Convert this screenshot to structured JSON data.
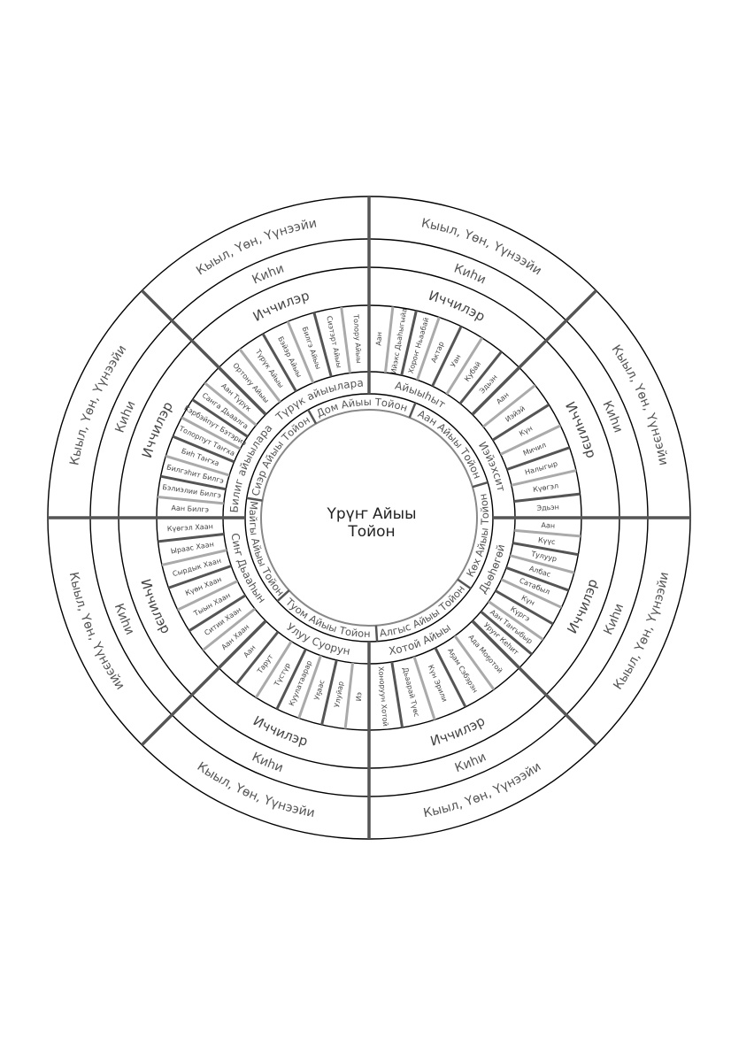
{
  "center": {
    "line1": "Үрүҥ Айыы",
    "line2": "Тойон"
  },
  "colors": {
    "ring": "#000000",
    "thick": "#555555",
    "inner_circle": "#888888",
    "dark": "#555555",
    "light": "#aaaaaa",
    "text": "#555555"
  },
  "outer_label": "Кыыл, Үөн, Үүнээйи",
  "kihi_label": "Киһи",
  "icc_label": "Иччилэр",
  "inner_deities": [
    "Аан Айыы Тойон",
    "Көх Айыы Тойон",
    "Алгыс Айыы Тойон",
    "Туом Айыы Тойон",
    "Майгы Айыы Тойон",
    "Сиэр Айыы Тойон",
    "Дом Айыы Тойон"
  ],
  "groups": [
    {
      "label": "Айыыһыт",
      "names": [
        "Аан",
        "Ийэкс Дьаһыгыйа",
        "Хороҥ Ньаабай",
        "Актар",
        "Уан",
        "Кубай",
        "Эдьэн"
      ]
    },
    {
      "label": "Иэйэхсит",
      "names": [
        "Аан",
        "Иэйэй",
        "Күн",
        "Мичил",
        "Налыгыр",
        "Күөгэл",
        "Эдьэн"
      ]
    },
    {
      "label": "Дьөһөгөй",
      "names": [
        "Аан",
        "Күүс",
        "Тулуур",
        "Албас",
        "Сатабыл",
        "Күн",
        "Күргэ",
        "Аан Таҥыбыр",
        "Уруҥ Кеһит"
      ]
    },
    {
      "label": "Хотой Айыы",
      "names": [
        "Ада Моҕотой",
        "Аҕам Сэбэрэн",
        "Күн Эрили",
        "Дьаарай Түөс",
        "Хоноруун Хотой"
      ]
    },
    {
      "label": "Улуу Суорун",
      "names": [
        "Иэ",
        "Улуйар",
        "Уҕаас",
        "Куулатаарар",
        "Түстүр",
        "Тарут",
        "Аан"
      ]
    },
    {
      "label": "Сиҥ Дьааһын",
      "names": [
        "Аан Хаан",
        "Ситии Хаан",
        "Тыын Хаан",
        "Күөн Хаан",
        "Сырдык Хаан",
        "Ыраас Хаан",
        "Күөгэл Хаан"
      ]
    },
    {
      "label": "Билиг айыылара",
      "names": [
        "Аан Билгэ",
        "Бэлиэлии Билгэ",
        "Билгэһит Билгэ",
        "Биһ Таҥха",
        "Толорпут Таҥха",
        "Кэрбэйпут Бэтэриэ",
        "Санга Дьаалга",
        "Аан Түрүк"
      ]
    },
    {
      "label": "Түрүк айыылара",
      "names": [
        "Ортону Айыы",
        "Түрүк Айыы",
        "Бэйэр Айыы",
        "Билгэ Айыы",
        "Сиэтэрт Айыы",
        "Толору Айыы"
      ]
    }
  ]
}
